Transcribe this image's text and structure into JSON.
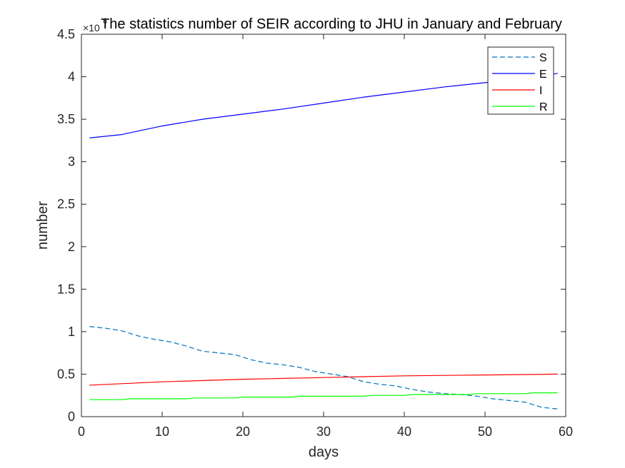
{
  "chart_data": {
    "type": "line",
    "title": "The statistics number of SEIR according to JHU in January and February",
    "xlabel": "days",
    "ylabel": "number",
    "xlim": [
      0,
      60
    ],
    "ylim": [
      0,
      4.5
    ],
    "y_multiplier_label": {
      "base": "×10",
      "exponent": "6"
    },
    "x_ticks": [
      0,
      10,
      20,
      30,
      40,
      50,
      60
    ],
    "y_ticks": [
      0,
      0.5,
      1,
      1.5,
      2,
      2.5,
      3,
      3.5,
      4,
      4.5
    ],
    "x_tick_labels": [
      "0",
      "10",
      "20",
      "30",
      "40",
      "50",
      "60"
    ],
    "y_tick_labels": [
      "0",
      "0.5",
      "1",
      "1.5",
      "2",
      "2.5",
      "3",
      "3.5",
      "4",
      "4.5"
    ],
    "grid": false,
    "legend_position": "top-right",
    "series": [
      {
        "name": "S",
        "color": "#0072BD",
        "style": "dashed",
        "x": [
          1,
          3,
          5,
          7,
          9,
          11,
          13,
          15,
          17,
          19,
          21,
          23,
          25,
          27,
          29,
          31,
          33,
          35,
          37,
          39,
          41,
          43,
          45,
          47,
          49,
          51,
          53,
          55,
          57,
          59
        ],
        "values": [
          1.06,
          1.04,
          1.01,
          0.95,
          0.91,
          0.88,
          0.83,
          0.77,
          0.75,
          0.73,
          0.67,
          0.63,
          0.61,
          0.58,
          0.53,
          0.5,
          0.47,
          0.41,
          0.38,
          0.36,
          0.32,
          0.29,
          0.27,
          0.26,
          0.24,
          0.21,
          0.19,
          0.17,
          0.11,
          0.09
        ]
      },
      {
        "name": "E",
        "color": "#0000FF",
        "style": "solid",
        "x": [
          1,
          5,
          10,
          15,
          20,
          25,
          30,
          35,
          40,
          45,
          50,
          55,
          59
        ],
        "values": [
          3.28,
          3.32,
          3.42,
          3.5,
          3.56,
          3.62,
          3.69,
          3.76,
          3.82,
          3.88,
          3.93,
          3.98,
          4.04
        ]
      },
      {
        "name": "I",
        "color": "#FF0000",
        "style": "solid",
        "x": [
          1,
          10,
          20,
          30,
          40,
          50,
          59
        ],
        "values": [
          0.37,
          0.41,
          0.44,
          0.46,
          0.48,
          0.49,
          0.5
        ]
      },
      {
        "name": "R",
        "color": "#00FF00",
        "style": "solid",
        "x": [
          1,
          5,
          6,
          13,
          14,
          19,
          20,
          26,
          27,
          35,
          36,
          40,
          41,
          48,
          49,
          55,
          56,
          59
        ],
        "values": [
          0.2,
          0.2,
          0.21,
          0.21,
          0.22,
          0.22,
          0.23,
          0.23,
          0.24,
          0.24,
          0.25,
          0.25,
          0.26,
          0.26,
          0.27,
          0.27,
          0.28,
          0.28
        ]
      }
    ]
  }
}
